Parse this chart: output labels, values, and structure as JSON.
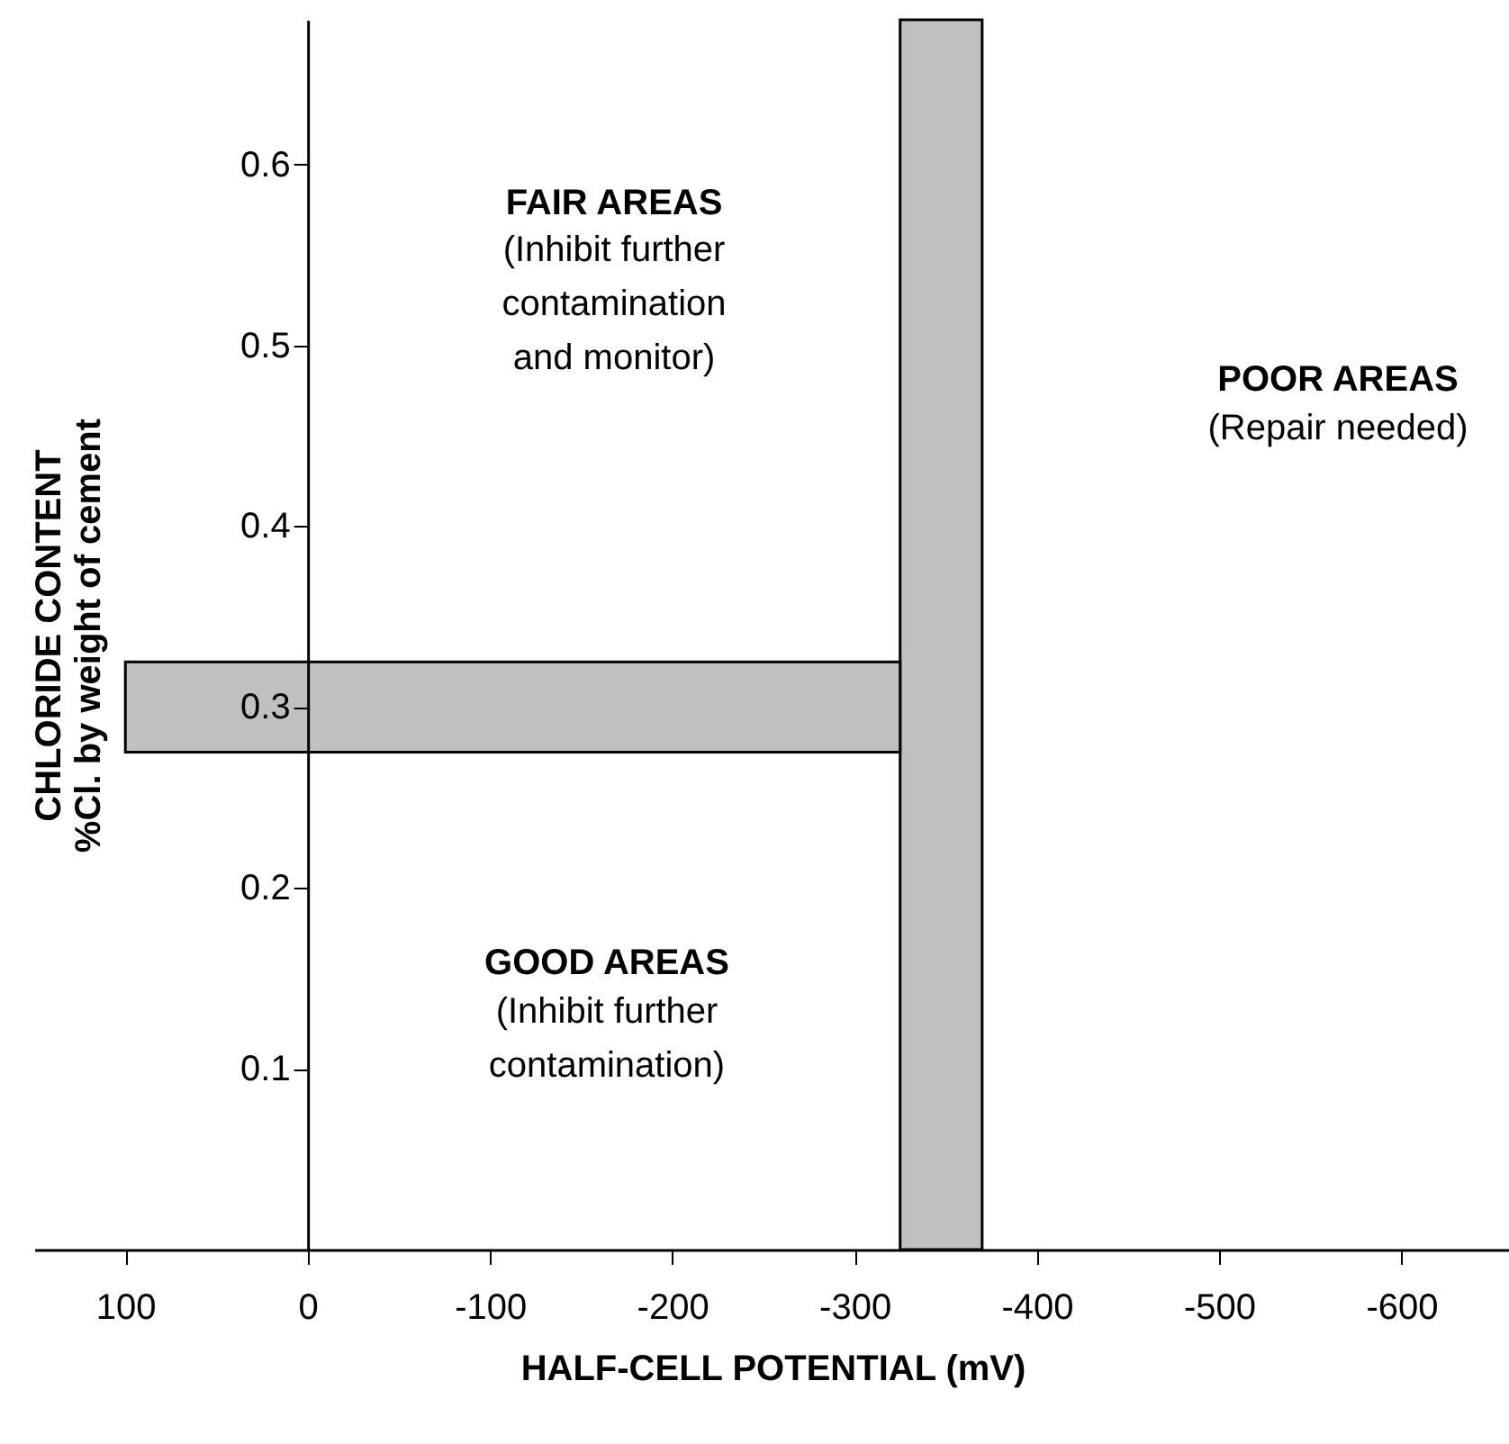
{
  "chart_data": {
    "type": "scatter",
    "xlabel": "HALF-CELL POTENTIAL  (mV)",
    "ylabel": "CHLORIDE CONTENT\n%Cl. by weight of cement",
    "xlim": [
      150,
      -660
    ],
    "ylim": [
      0,
      0.68
    ],
    "xticks": [
      100,
      0,
      -100,
      -200,
      -300,
      -400,
      -500,
      -600
    ],
    "yticks": [
      0.1,
      0.2,
      0.3,
      0.4,
      0.5,
      0.6
    ],
    "bands": [
      {
        "axis": "x",
        "from": -325,
        "to": -370,
        "color": "#c0c0c0"
      },
      {
        "axis": "y",
        "from": 0.275,
        "to": 0.325,
        "color": "#c0c0c0"
      }
    ],
    "annotations": [
      "FAIR AREAS",
      "(Inhibit further\ncontamination\nand monitor)",
      "GOOD AREAS",
      "(Inhibit further\ncontamination)",
      "POOR AREAS",
      "(Repair needed)"
    ]
  }
}
